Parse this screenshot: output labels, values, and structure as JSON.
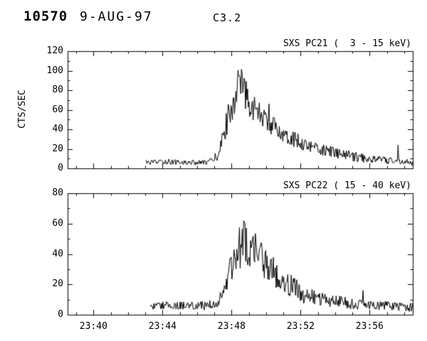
{
  "header": {
    "event_id": "10570",
    "date": "9-AUG-97",
    "flare_class": "C3.2"
  },
  "x_axis": {
    "lim": [
      38.5,
      58.5
    ],
    "ticks": [
      40,
      44,
      48,
      52,
      56
    ],
    "tick_labels": [
      "23:40",
      "23:44",
      "23:48",
      "23:52",
      "23:56"
    ],
    "minor_step": 1
  },
  "chart_data": [
    {
      "type": "line",
      "title": "SXS PC21 (  3 - 15 keV)",
      "ylabel": "CTS/SEC",
      "ylim": [
        0,
        120
      ],
      "yticks": [
        0,
        20,
        40,
        60,
        80,
        100,
        120
      ],
      "ytick_step": 20,
      "yminor_step": 10,
      "seed": 12345,
      "sample_step": 0.04,
      "profile": [
        [
          43.05,
          6,
          2.5
        ],
        [
          43.5,
          6,
          2.5
        ],
        [
          44.0,
          7,
          3
        ],
        [
          44.5,
          7,
          3
        ],
        [
          45.0,
          6,
          2.5
        ],
        [
          45.5,
          6,
          2.5
        ],
        [
          46.0,
          6,
          2.5
        ],
        [
          46.5,
          6,
          2.5
        ],
        [
          46.9,
          8,
          3
        ],
        [
          47.2,
          14,
          6
        ],
        [
          47.5,
          30,
          10
        ],
        [
          47.8,
          52,
          14
        ],
        [
          48.1,
          68,
          16
        ],
        [
          48.35,
          80,
          22
        ],
        [
          48.6,
          82,
          22
        ],
        [
          48.9,
          72,
          16
        ],
        [
          49.2,
          64,
          14
        ],
        [
          49.6,
          56,
          12
        ],
        [
          50.0,
          48,
          11
        ],
        [
          50.5,
          42,
          10
        ],
        [
          51.0,
          36,
          9
        ],
        [
          51.5,
          31,
          8
        ],
        [
          52.0,
          27,
          8
        ],
        [
          52.5,
          23,
          7
        ],
        [
          53.0,
          20,
          7
        ],
        [
          53.5,
          18,
          6
        ],
        [
          54.0,
          16,
          6
        ],
        [
          54.5,
          14,
          5
        ],
        [
          55.0,
          12,
          5
        ],
        [
          55.5,
          11,
          5
        ],
        [
          56.0,
          10,
          4
        ],
        [
          56.5,
          9,
          4
        ],
        [
          57.0,
          8,
          4
        ],
        [
          57.5,
          8,
          4
        ],
        [
          58.0,
          7,
          3
        ],
        [
          58.5,
          5,
          3
        ]
      ],
      "spikes": [
        [
          57.65,
          24
        ],
        [
          50.15,
          66
        ]
      ]
    },
    {
      "type": "line",
      "title": "SXS PC22 ( 15 - 40 keV)",
      "ylabel": "",
      "ylim": [
        0,
        80
      ],
      "yticks": [
        0,
        20,
        40,
        60,
        80
      ],
      "ytick_step": 20,
      "yminor_step": 10,
      "seed": 67890,
      "sample_step": 0.04,
      "profile": [
        [
          43.3,
          6,
          2.5
        ],
        [
          44.0,
          6,
          2.5
        ],
        [
          44.5,
          6,
          3
        ],
        [
          45.0,
          6,
          2.5
        ],
        [
          45.5,
          6,
          2.5
        ],
        [
          46.0,
          6,
          2.5
        ],
        [
          46.5,
          6,
          3
        ],
        [
          47.0,
          7,
          3
        ],
        [
          47.4,
          11,
          5
        ],
        [
          47.7,
          20,
          8
        ],
        [
          48.0,
          33,
          11
        ],
        [
          48.3,
          43,
          13
        ],
        [
          48.6,
          47,
          17
        ],
        [
          48.9,
          46,
          17
        ],
        [
          49.2,
          44,
          13
        ],
        [
          49.5,
          40,
          12
        ],
        [
          49.9,
          35,
          11
        ],
        [
          50.3,
          30,
          10
        ],
        [
          50.8,
          25,
          9
        ],
        [
          51.3,
          20,
          8
        ],
        [
          51.8,
          16,
          7
        ],
        [
          52.3,
          13,
          6
        ],
        [
          52.8,
          11,
          5
        ],
        [
          53.3,
          10,
          5
        ],
        [
          53.8,
          9,
          4
        ],
        [
          54.5,
          8,
          4
        ],
        [
          55.2,
          7,
          3.5
        ],
        [
          56.0,
          6,
          3
        ],
        [
          57.0,
          6,
          3
        ],
        [
          58.0,
          5,
          3
        ],
        [
          58.5,
          5,
          3
        ]
      ],
      "spikes": [
        [
          48.75,
          61
        ],
        [
          55.6,
          16
        ]
      ]
    }
  ]
}
